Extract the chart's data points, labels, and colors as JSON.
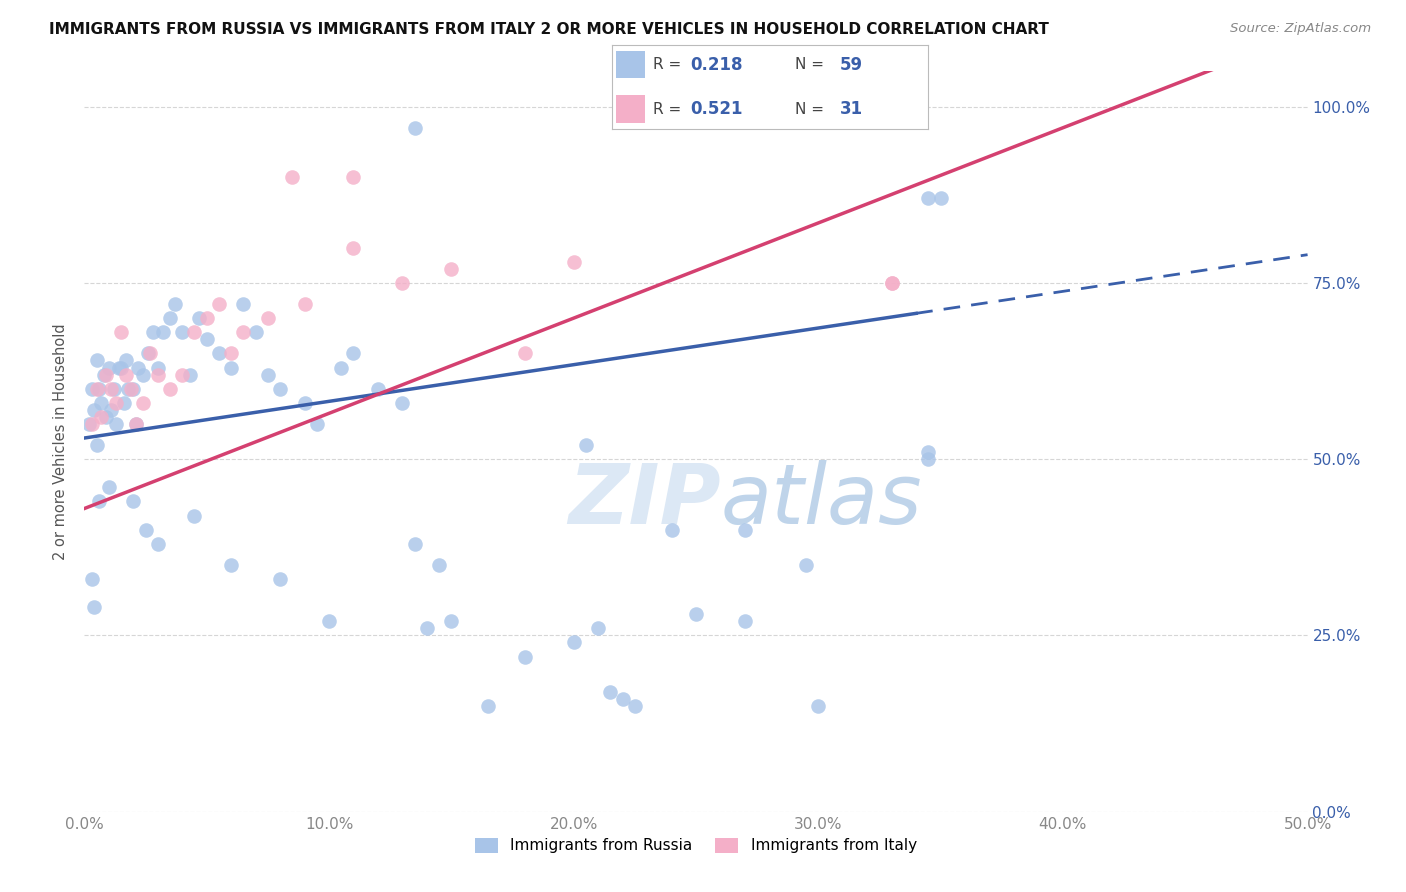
{
  "title": "IMMIGRANTS FROM RUSSIA VS IMMIGRANTS FROM ITALY 2 OR MORE VEHICLES IN HOUSEHOLD CORRELATION CHART",
  "source": "Source: ZipAtlas.com",
  "ylabel": "2 or more Vehicles in Household",
  "legend_label1": "Immigrants from Russia",
  "legend_label2": "Immigrants from Italy",
  "R1": 0.218,
  "N1": 59,
  "R2": 0.521,
  "N2": 31,
  "color_russia": "#a8c4e8",
  "color_italy": "#f4afc8",
  "color_russia_line": "#3a5faa",
  "color_italy_line": "#d44070",
  "color_text_blue": "#3a5faa",
  "background_color": "#ffffff",
  "grid_color": "#cccccc",
  "watermark_color": "#dce8f5",
  "xlim": [
    0.0,
    50.0
  ],
  "ylim": [
    0.0,
    105.0
  ],
  "russia_line_intercept": 53.0,
  "russia_line_slope": 0.52,
  "italy_line_intercept": 43.0,
  "italy_line_slope": 1.35,
  "russia_solid_end": 34.0,
  "scatter_russia_x": [
    0.2,
    0.3,
    0.4,
    0.5,
    0.5,
    0.6,
    0.7,
    0.8,
    0.9,
    1.0,
    1.1,
    1.2,
    1.3,
    1.4,
    1.5,
    1.6,
    1.7,
    1.8,
    2.0,
    2.1,
    2.2,
    2.4,
    2.6,
    2.8,
    3.0,
    3.2,
    3.5,
    3.7,
    4.0,
    4.3,
    4.7,
    5.0,
    5.5,
    6.0,
    6.5,
    7.0,
    7.5,
    8.0,
    9.0,
    9.5,
    10.5,
    11.0,
    12.0,
    13.0,
    13.5,
    14.5,
    16.5,
    18.0,
    20.5,
    21.5,
    22.5,
    24.0,
    27.0,
    29.5,
    34.5,
    0.3,
    0.4,
    0.6,
    35.0
  ],
  "scatter_russia_y": [
    55.0,
    60.0,
    57.0,
    52.0,
    64.0,
    60.0,
    58.0,
    62.0,
    56.0,
    63.0,
    57.0,
    60.0,
    55.0,
    63.0,
    63.0,
    58.0,
    64.0,
    60.0,
    60.0,
    55.0,
    63.0,
    62.0,
    65.0,
    68.0,
    63.0,
    68.0,
    70.0,
    72.0,
    68.0,
    62.0,
    70.0,
    67.0,
    65.0,
    63.0,
    72.0,
    68.0,
    62.0,
    60.0,
    58.0,
    55.0,
    63.0,
    65.0,
    60.0,
    58.0,
    38.0,
    35.0,
    15.0,
    22.0,
    52.0,
    17.0,
    15.0,
    40.0,
    40.0,
    35.0,
    50.0,
    33.0,
    29.0,
    44.0,
    87.0
  ],
  "scatter_russia_x_low": [
    1.0,
    2.0,
    2.5,
    3.0,
    4.5,
    6.0,
    8.0,
    10.0,
    14.0,
    15.0,
    20.0,
    21.0,
    22.0,
    25.0,
    27.0,
    30.0
  ],
  "scatter_russia_y_low": [
    46.0,
    44.0,
    40.0,
    38.0,
    42.0,
    35.0,
    33.0,
    27.0,
    26.0,
    27.0,
    24.0,
    26.0,
    16.0,
    28.0,
    27.0,
    15.0
  ],
  "scatter_italy_x": [
    0.3,
    0.5,
    0.7,
    0.9,
    1.1,
    1.3,
    1.5,
    1.7,
    1.9,
    2.1,
    2.4,
    2.7,
    3.0,
    3.5,
    4.0,
    4.5,
    5.0,
    5.5,
    6.0,
    6.5,
    7.5,
    9.0,
    11.0,
    13.0,
    15.0,
    18.0,
    20.0,
    33.0
  ],
  "scatter_italy_y": [
    55.0,
    60.0,
    56.0,
    62.0,
    60.0,
    58.0,
    68.0,
    62.0,
    60.0,
    55.0,
    58.0,
    65.0,
    62.0,
    60.0,
    62.0,
    68.0,
    70.0,
    72.0,
    65.0,
    68.0,
    70.0,
    72.0,
    80.0,
    75.0,
    77.0,
    65.0,
    78.0,
    75.0
  ],
  "extra_russia_top_x": 13.5,
  "extra_russia_top_y": 97.0,
  "extra_italy_top1_x": 8.5,
  "extra_italy_top1_y": 90.0,
  "extra_italy_top2_x": 11.0,
  "extra_italy_top2_y": 90.0,
  "extra_russia_right1_x": 34.5,
  "extra_russia_right1_y": 87.0,
  "extra_russia_right2_x": 34.5,
  "extra_russia_right2_y": 51.0,
  "extra_italy_right_x": 33.0,
  "extra_italy_right_y": 75.0
}
